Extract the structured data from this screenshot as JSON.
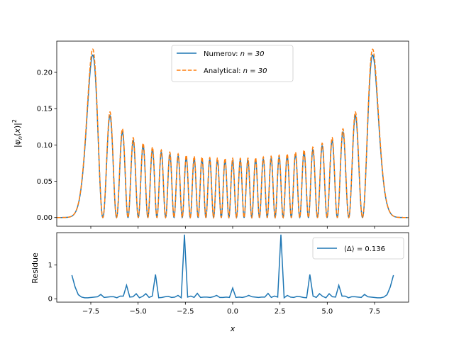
{
  "chart_data": [
    {
      "type": "line",
      "ylabel": "|ψ_n(x)|²",
      "xlim": [
        -9.3,
        9.3
      ],
      "ylim": [
        -0.012,
        0.243
      ],
      "xticks": [
        -7.5,
        -5.0,
        -2.5,
        0.0,
        2.5,
        5.0,
        7.5
      ],
      "yticks": [
        0.0,
        0.05,
        0.1,
        0.15,
        0.2
      ],
      "ytick_labels": [
        "0.00",
        "0.05",
        "0.10",
        "0.15",
        "0.20"
      ],
      "grid": false,
      "legend": {
        "placement": "top-center"
      },
      "quantum_number": 30,
      "series": [
        {
          "name": "Numerov: n = 30",
          "label_text": "Numerov: ",
          "label_math": "n = 30",
          "color": "#1f77b4",
          "style": "solid",
          "scale": 0.965
        },
        {
          "name": "Analytical: n = 30",
          "label_text": "Analytical: ",
          "label_math": "n = 30",
          "color": "#ff7f0e",
          "style": "dashed",
          "scale": 1.0
        }
      ]
    },
    {
      "type": "line",
      "xlabel": "x",
      "ylabel": "Residue",
      "xlim": [
        -9.3,
        9.3
      ],
      "ylim": [
        -0.1,
        1.96
      ],
      "xticks": [
        -7.5,
        -5.0,
        -2.5,
        0.0,
        2.5,
        5.0,
        7.5
      ],
      "xtick_labels": [
        "−7.5",
        "−5.0",
        "−2.5",
        "0.0",
        "2.5",
        "5.0",
        "7.5"
      ],
      "yticks": [
        0,
        1
      ],
      "ytick_labels": [
        "0",
        "1"
      ],
      "grid": false,
      "legend": {
        "placement": "top-right",
        "label": "⟨Δ⟩ = 0.136"
      },
      "series": [
        {
          "name": "⟨Δ⟩ = 0.136",
          "color": "#1f77b4",
          "x": [
            -8.5,
            -8.33,
            -8.16,
            -7.99,
            -7.82,
            -7.65,
            -7.48,
            -7.31,
            -7.14,
            -6.97,
            -6.8,
            -6.63,
            -6.46,
            -6.29,
            -6.12,
            -5.95,
            -5.78,
            -5.61,
            -5.44,
            -5.27,
            -5.1,
            -4.93,
            -4.76,
            -4.59,
            -4.42,
            -4.25,
            -4.08,
            -3.91,
            -3.74,
            -3.57,
            -3.4,
            -3.23,
            -3.06,
            -2.89,
            -2.72,
            -2.55,
            -2.38,
            -2.21,
            -2.04,
            -1.87,
            -1.7,
            -1.53,
            -1.36,
            -1.19,
            -1.02,
            -0.85,
            -0.68,
            -0.51,
            -0.34,
            -0.17,
            0.0,
            0.17,
            0.34,
            0.51,
            0.68,
            0.85,
            1.02,
            1.19,
            1.36,
            1.53,
            1.7,
            1.87,
            2.04,
            2.21,
            2.38,
            2.55,
            2.72,
            2.89,
            3.06,
            3.23,
            3.4,
            3.57,
            3.74,
            3.91,
            4.08,
            4.25,
            4.42,
            4.59,
            4.76,
            4.93,
            5.1,
            5.27,
            5.44,
            5.61,
            5.78,
            5.95,
            6.12,
            6.29,
            6.46,
            6.63,
            6.8,
            6.97,
            7.14,
            7.31,
            7.48,
            7.65,
            7.82,
            7.99,
            8.16,
            8.33,
            8.5
          ],
          "values": [
            0.7,
            0.35,
            0.12,
            0.05,
            0.03,
            0.03,
            0.04,
            0.05,
            0.06,
            0.13,
            0.04,
            0.05,
            0.06,
            0.06,
            0.03,
            0.08,
            0.08,
            0.4,
            0.05,
            0.06,
            0.15,
            0.03,
            0.07,
            0.15,
            0.04,
            0.08,
            0.72,
            0.03,
            0.04,
            0.06,
            0.07,
            0.04,
            0.05,
            0.1,
            0.03,
            1.9,
            0.05,
            0.08,
            0.04,
            0.16,
            0.04,
            0.05,
            0.05,
            0.04,
            0.06,
            0.1,
            0.04,
            0.04,
            0.05,
            0.04,
            0.32,
            0.04,
            0.05,
            0.04,
            0.06,
            0.1,
            0.06,
            0.05,
            0.04,
            0.05,
            0.05,
            0.16,
            0.04,
            0.08,
            0.05,
            1.9,
            0.03,
            0.1,
            0.05,
            0.04,
            0.07,
            0.06,
            0.04,
            0.03,
            0.72,
            0.08,
            0.04,
            0.15,
            0.07,
            0.03,
            0.15,
            0.06,
            0.05,
            0.4,
            0.08,
            0.08,
            0.03,
            0.06,
            0.06,
            0.05,
            0.04,
            0.13,
            0.06,
            0.05,
            0.04,
            0.03,
            0.03,
            0.05,
            0.12,
            0.35,
            0.7
          ]
        }
      ]
    }
  ]
}
